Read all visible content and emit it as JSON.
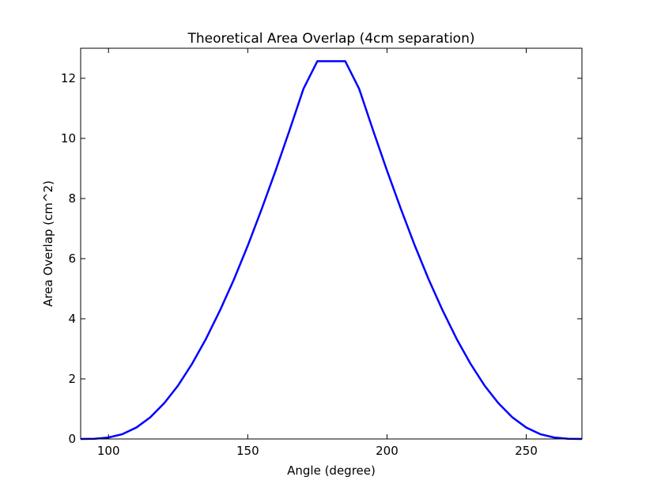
{
  "chart_data": {
    "type": "line",
    "title": "Theoretical Area Overlap (4cm separation)",
    "xlabel": "Angle (degree)",
    "ylabel": "Area Overlap (cm^2)",
    "xlim": [
      90,
      270
    ],
    "ylim": [
      0,
      13
    ],
    "xticks": [
      100,
      150,
      200,
      250
    ],
    "yticks": [
      0,
      2,
      4,
      6,
      8,
      10,
      12
    ],
    "grid": false,
    "series": [
      {
        "color": "#0000ff",
        "x": [
          90,
          95,
          100,
          105,
          110,
          115,
          120,
          125,
          130,
          135,
          140,
          145,
          150,
          155,
          160,
          165,
          170,
          175,
          180,
          185,
          190,
          195,
          200,
          205,
          210,
          215,
          220,
          225,
          230,
          235,
          240,
          245,
          250,
          255,
          260,
          265,
          270
        ],
        "y": [
          0.0,
          0.006,
          0.05,
          0.16,
          0.38,
          0.72,
          1.19,
          1.78,
          2.5,
          3.33,
          4.27,
          5.3,
          6.43,
          7.65,
          8.93,
          10.27,
          11.65,
          12.57,
          12.57,
          12.57,
          11.65,
          10.27,
          8.93,
          7.65,
          6.43,
          5.3,
          4.27,
          3.33,
          2.5,
          1.78,
          1.19,
          0.72,
          0.38,
          0.16,
          0.05,
          0.006,
          0.0
        ]
      }
    ]
  }
}
